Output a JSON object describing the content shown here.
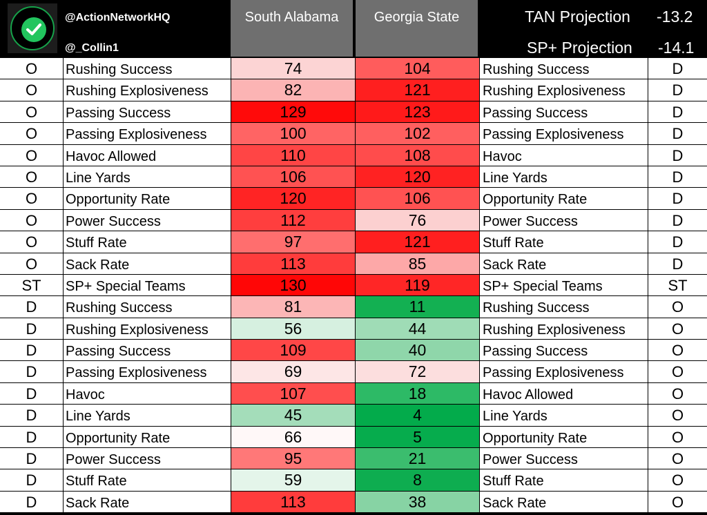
{
  "header": {
    "handle_top": "@ActionNetworkHQ",
    "handle_bottom": "@_Collin1",
    "team_left": "South Alabama",
    "team_right": "Georgia State",
    "projection1_label": "TAN Projection",
    "projection1_value": "-13.2",
    "projection2_label": "SP+ Projection",
    "projection2_value": "-14.1",
    "logo_icon": "checkmark-icon"
  },
  "rows": [
    {
      "side_l": "O",
      "label_l": "Rushing Success",
      "sa": "74",
      "sa_color": "#fcd4d4",
      "gs": "104",
      "gs_color": "#ff5c5c",
      "label_r": "Rushing Success",
      "side_r": "D"
    },
    {
      "side_l": "O",
      "label_l": "Rushing Explosiveness",
      "sa": "82",
      "sa_color": "#fcb4b4",
      "gs": "121",
      "gs_color": "#ff1f1f",
      "label_r": "Rushing Explosiveness",
      "side_r": "D"
    },
    {
      "side_l": "O",
      "label_l": "Passing Success",
      "sa": "129",
      "sa_color": "#ff0a0a",
      "gs": "123",
      "gs_color": "#ff1a1a",
      "label_r": "Passing Success",
      "side_r": "D"
    },
    {
      "side_l": "O",
      "label_l": "Passing Explosiveness",
      "sa": "100",
      "sa_color": "#ff6464",
      "gs": "102",
      "gs_color": "#ff5f5f",
      "label_r": "Passing Explosiveness",
      "side_r": "D"
    },
    {
      "side_l": "O",
      "label_l": "Havoc Allowed",
      "sa": "110",
      "sa_color": "#ff4545",
      "gs": "108",
      "gs_color": "#ff4c4c",
      "label_r": "Havoc",
      "side_r": "D"
    },
    {
      "side_l": "O",
      "label_l": "Line Yards",
      "sa": "106",
      "sa_color": "#ff5252",
      "gs": "120",
      "gs_color": "#ff2222",
      "label_r": "Line Yards",
      "side_r": "D"
    },
    {
      "side_l": "O",
      "label_l": "Opportunity Rate",
      "sa": "120",
      "sa_color": "#ff2424",
      "gs": "106",
      "gs_color": "#ff5252",
      "label_r": "Opportunity Rate",
      "side_r": "D"
    },
    {
      "side_l": "O",
      "label_l": "Power Success",
      "sa": "112",
      "sa_color": "#ff3e3e",
      "gs": "76",
      "gs_color": "#fcd0d0",
      "label_r": "Power Success",
      "side_r": "D"
    },
    {
      "side_l": "O",
      "label_l": "Stuff Rate",
      "sa": "97",
      "sa_color": "#ff6e6e",
      "gs": "121",
      "gs_color": "#ff1f1f",
      "label_r": "Stuff Rate",
      "side_r": "D"
    },
    {
      "side_l": "O",
      "label_l": "Sack Rate",
      "sa": "113",
      "sa_color": "#ff3c3c",
      "gs": "85",
      "gs_color": "#fda8a8",
      "label_r": "Sack Rate",
      "side_r": "D"
    },
    {
      "side_l": "ST",
      "label_l": "SP+ Special Teams",
      "sa": "130",
      "sa_color": "#ff0606",
      "gs": "119",
      "gs_color": "#ff2626",
      "label_r": "SP+ Special Teams",
      "side_r": "ST"
    },
    {
      "side_l": "D",
      "label_l": "Rushing Success",
      "sa": "81",
      "sa_color": "#fcb6b6",
      "gs": "11",
      "gs_color": "#13b052",
      "label_r": "Rushing Success",
      "side_r": "O"
    },
    {
      "side_l": "D",
      "label_l": "Rushing Explosiveness",
      "sa": "56",
      "sa_color": "#d6f0e0",
      "gs": "44",
      "gs_color": "#9fdcb6",
      "label_r": "Rushing Explosiveness",
      "side_r": "O"
    },
    {
      "side_l": "D",
      "label_l": "Passing Success",
      "sa": "109",
      "sa_color": "#ff4747",
      "gs": "40",
      "gs_color": "#8fd6aa",
      "label_r": "Passing Success",
      "side_r": "O"
    },
    {
      "side_l": "D",
      "label_l": "Passing Explosiveness",
      "sa": "69",
      "sa_color": "#fde6e6",
      "gs": "72",
      "gs_color": "#fcdede",
      "label_r": "Passing Explosiveness",
      "side_r": "O"
    },
    {
      "side_l": "D",
      "label_l": "Havoc",
      "sa": "107",
      "sa_color": "#ff4e4e",
      "gs": "18",
      "gs_color": "#2dba66",
      "label_r": "Havoc Allowed",
      "side_r": "O"
    },
    {
      "side_l": "D",
      "label_l": "Line Yards",
      "sa": "45",
      "sa_color": "#a4ddba",
      "gs": "4",
      "gs_color": "#03ab4b",
      "label_r": "Line Yards",
      "side_r": "O"
    },
    {
      "side_l": "D",
      "label_l": "Opportunity Rate",
      "sa": "66",
      "sa_color": "#fff8f8",
      "gs": "5",
      "gs_color": "#06ac4d",
      "label_r": "Opportunity Rate",
      "side_r": "O"
    },
    {
      "side_l": "D",
      "label_l": "Power Success",
      "sa": "95",
      "sa_color": "#ff7878",
      "gs": "21",
      "gs_color": "#3bbd6e",
      "label_r": "Power Success",
      "side_r": "O"
    },
    {
      "side_l": "D",
      "label_l": "Stuff Rate",
      "sa": "59",
      "sa_color": "#e4f5ea",
      "gs": "8",
      "gs_color": "#0ead50",
      "label_r": "Stuff Rate",
      "side_r": "O"
    },
    {
      "side_l": "D",
      "label_l": "Sack Rate",
      "sa": "113",
      "sa_color": "#ff3c3c",
      "gs": "38",
      "gs_color": "#87d3a4",
      "label_r": "Sack Rate",
      "side_r": "O"
    }
  ]
}
